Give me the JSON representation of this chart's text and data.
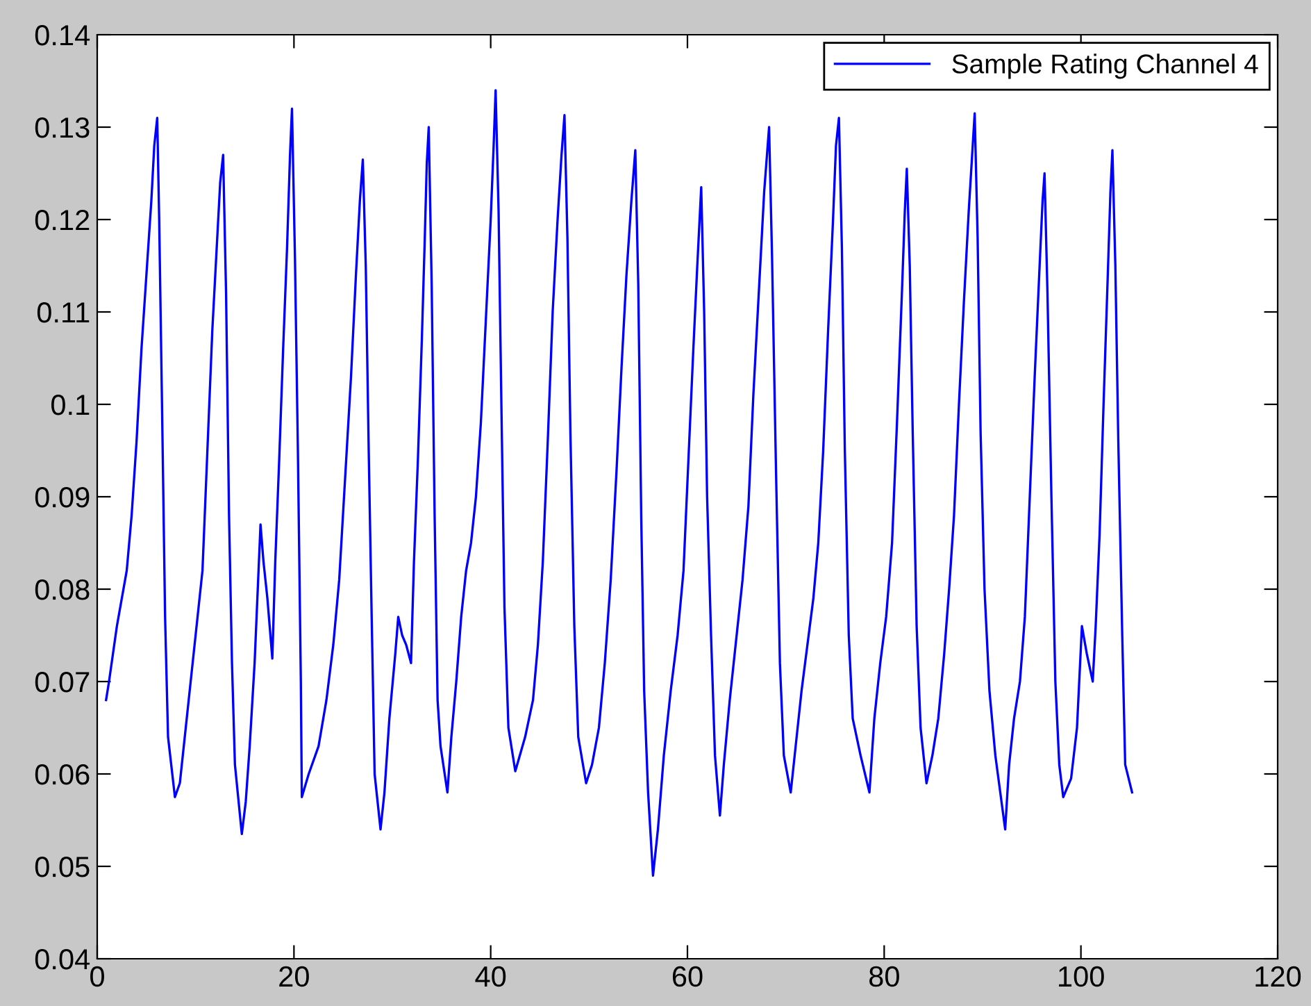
{
  "chart_data": {
    "type": "line",
    "xlim": [
      0,
      120
    ],
    "ylim": [
      0.04,
      0.14
    ],
    "xticks": [
      0,
      20,
      40,
      60,
      80,
      100,
      120
    ],
    "yticks": [
      {
        "value": 0.04,
        "label": "0.04"
      },
      {
        "value": 0.05,
        "label": "0.05"
      },
      {
        "value": 0.06,
        "label": "0.06"
      },
      {
        "value": 0.07,
        "label": "0.07"
      },
      {
        "value": 0.08,
        "label": "0.08"
      },
      {
        "value": 0.09,
        "label": "0.09"
      },
      {
        "value": 0.1,
        "label": "0.1"
      },
      {
        "value": 0.11,
        "label": "0.11"
      },
      {
        "value": 0.12,
        "label": "0.12"
      },
      {
        "value": 0.13,
        "label": "0.13"
      },
      {
        "value": 0.14,
        "label": "0.14"
      }
    ],
    "grid": false,
    "legend": "top right",
    "marker": "none",
    "line_style": "solid",
    "series": [
      {
        "name": "Sample Rating Channel 4",
        "color": "#0000ff",
        "x": [
          0.9,
          1.2,
          2,
          3,
          3.5,
          4,
          4.5,
          5,
          5.5,
          5.8,
          6.1,
          6.3,
          6.6,
          6.9,
          7.2,
          7.9,
          8.4,
          9,
          9.7,
          10.3,
          10.7,
          11.2,
          11.7,
          12.2,
          12.5,
          12.8,
          13.1,
          13.4,
          13.7,
          14.0,
          14.7,
          15.1,
          15.5,
          16.0,
          16.4,
          16.6,
          16.9,
          17.3,
          17.8,
          18.1,
          18.5,
          18.9,
          19.3,
          19.6,
          19.8,
          20.1,
          20.4,
          20.7,
          20.8,
          21.5,
          22.5,
          23.3,
          24,
          24.6,
          25.2,
          25.8,
          26.3,
          26.7,
          27.0,
          27.3,
          27.6,
          27.9,
          28.2,
          28.8,
          29.2,
          29.7,
          30.3,
          30.6,
          31.0,
          31.4,
          31.9,
          32.2,
          32.6,
          33.0,
          33.3,
          33.5,
          33.7,
          34.0,
          34.3,
          34.6,
          34.9,
          35.6,
          36,
          36.5,
          37,
          37.5,
          38,
          38.5,
          39,
          39.5,
          40,
          40.3,
          40.5,
          40.8,
          41.1,
          41.4,
          41.8,
          42.5,
          43.5,
          44.3,
          44.8,
          45.3,
          45.8,
          46.3,
          46.8,
          47.2,
          47.5,
          47.8,
          48.1,
          48.5,
          48.9,
          49.7,
          50.3,
          51,
          51.6,
          52.2,
          52.8,
          53.3,
          53.8,
          54.3,
          54.7,
          55,
          55.3,
          55.6,
          56,
          56.5,
          57,
          57.6,
          58.3,
          59,
          59.6,
          60.1,
          60.6,
          61,
          61.4,
          61.7,
          62,
          62.4,
          62.8,
          63.3,
          63.7,
          64.3,
          65,
          65.6,
          66.2,
          66.7,
          67.3,
          67.8,
          68.3,
          68.6,
          69,
          69.4,
          69.8,
          70.5,
          71,
          71.6,
          72.2,
          72.8,
          73.3,
          73.8,
          74.3,
          74.8,
          75.1,
          75.4,
          75.7,
          76,
          76.4,
          76.8,
          77.6,
          78.5,
          79,
          79.6,
          80.2,
          80.8,
          81.3,
          81.8,
          82.1,
          82.3,
          82.6,
          82.9,
          83.3,
          83.7,
          84.3,
          84.9,
          85.5,
          86.1,
          86.6,
          87.1,
          87.6,
          88.1,
          88.6,
          89,
          89.2,
          89.5,
          89.8,
          90.2,
          90.7,
          91.3,
          92.3,
          92.7,
          93.2,
          93.8,
          94.3,
          94.8,
          95.3,
          95.8,
          96.1,
          96.3,
          96.6,
          97,
          97.4,
          97.8,
          98.2,
          99,
          99.6,
          100.1,
          100.6,
          101.2,
          101.5,
          101.9,
          102.3,
          102.7,
          103,
          103.2,
          103.5,
          103.8,
          104.2,
          104.5,
          105.2
        ],
        "values": [
          0.068,
          0.07,
          0.076,
          0.082,
          0.088,
          0.096,
          0.106,
          0.114,
          0.122,
          0.128,
          0.131,
          0.12,
          0.099,
          0.077,
          0.064,
          0.0575,
          0.059,
          0.065,
          0.072,
          0.078,
          0.082,
          0.095,
          0.108,
          0.118,
          0.124,
          0.127,
          0.112,
          0.088,
          0.072,
          0.061,
          0.0535,
          0.057,
          0.063,
          0.072,
          0.082,
          0.087,
          0.083,
          0.079,
          0.0725,
          0.083,
          0.094,
          0.106,
          0.117,
          0.127,
          0.132,
          0.116,
          0.095,
          0.07,
          0.0575,
          0.06,
          0.063,
          0.068,
          0.074,
          0.081,
          0.092,
          0.103,
          0.114,
          0.122,
          0.1265,
          0.115,
          0.095,
          0.077,
          0.06,
          0.054,
          0.058,
          0.066,
          0.073,
          0.077,
          0.075,
          0.074,
          0.072,
          0.083,
          0.094,
          0.107,
          0.118,
          0.126,
          0.13,
          0.113,
          0.088,
          0.068,
          0.063,
          0.058,
          0.064,
          0.07,
          0.077,
          0.082,
          0.085,
          0.09,
          0.098,
          0.109,
          0.12,
          0.128,
          0.134,
          0.121,
          0.099,
          0.078,
          0.065,
          0.0603,
          0.064,
          0.068,
          0.074,
          0.083,
          0.096,
          0.11,
          0.12,
          0.127,
          0.1313,
          0.118,
          0.097,
          0.076,
          0.064,
          0.059,
          0.061,
          0.065,
          0.072,
          0.081,
          0.093,
          0.104,
          0.114,
          0.122,
          0.1275,
          0.113,
          0.088,
          0.069,
          0.058,
          0.049,
          0.054,
          0.062,
          0.069,
          0.075,
          0.082,
          0.094,
          0.106,
          0.115,
          0.1235,
          0.11,
          0.09,
          0.075,
          0.062,
          0.0555,
          0.061,
          0.068,
          0.075,
          0.081,
          0.089,
          0.101,
          0.113,
          0.123,
          0.13,
          0.116,
          0.093,
          0.072,
          0.062,
          0.058,
          0.063,
          0.069,
          0.074,
          0.079,
          0.085,
          0.095,
          0.108,
          0.12,
          0.128,
          0.131,
          0.117,
          0.095,
          0.075,
          0.066,
          0.062,
          0.058,
          0.066,
          0.072,
          0.077,
          0.085,
          0.098,
          0.112,
          0.121,
          0.1255,
          0.115,
          0.097,
          0.076,
          0.065,
          0.059,
          0.062,
          0.066,
          0.073,
          0.08,
          0.088,
          0.1,
          0.111,
          0.121,
          0.128,
          0.1315,
          0.118,
          0.097,
          0.08,
          0.069,
          0.062,
          0.054,
          0.061,
          0.066,
          0.07,
          0.077,
          0.09,
          0.103,
          0.115,
          0.122,
          0.125,
          0.112,
          0.09,
          0.07,
          0.061,
          0.0575,
          0.0595,
          0.065,
          0.076,
          0.073,
          0.07,
          0.076,
          0.086,
          0.1,
          0.113,
          0.123,
          0.1275,
          0.115,
          0.096,
          0.075,
          0.061,
          0.058
        ]
      }
    ]
  }
}
